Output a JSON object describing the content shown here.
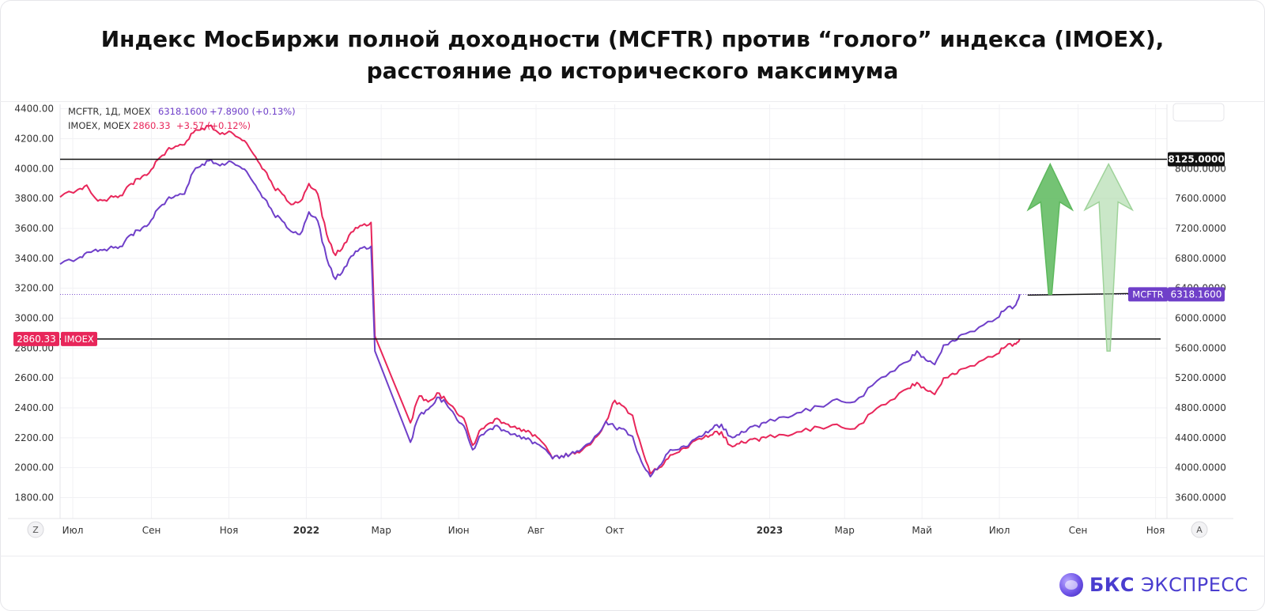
{
  "title": {
    "line1": "Индекс МосБиржи полной доходности (MCFTR) против “голого” индекса (IMOEX),",
    "line2": "расстояние до исторического максимума"
  },
  "legend": {
    "mcftr": {
      "label": "MCFTR, 1Д, MOEX",
      "value": "6318.1600",
      "change": "+7.8900 (+0.13%)"
    },
    "imoex": {
      "label": "IMOEX, MOEX",
      "value": "2860.33",
      "change": "+3.57 (+0.12%)"
    }
  },
  "brand": {
    "name_bold": "БКС",
    "name_rest": "ЭКСПРЕСС"
  },
  "buttons": {
    "left": "Z",
    "right": "A"
  },
  "colors": {
    "mcftr": "#6f3fc9",
    "imoex": "#e8265a",
    "arrow_dark": "#5cb85c",
    "arrow_light": "#9fd39a"
  },
  "chart_data": {
    "type": "line",
    "x_start": "2021-06-21",
    "x_end": "2023-11-10",
    "x_ticks": [
      {
        "date": "2021-07-01",
        "label": "Июл",
        "bold": false
      },
      {
        "date": "2021-09-01",
        "label": "Сен",
        "bold": false
      },
      {
        "date": "2021-11-01",
        "label": "Ноя",
        "bold": false
      },
      {
        "date": "2022-01-01",
        "label": "2022",
        "bold": true
      },
      {
        "date": "2022-03-01",
        "label": "Мар",
        "bold": false
      },
      {
        "date": "2022-05-01",
        "label": "Июн",
        "bold": false
      },
      {
        "date": "2022-07-01",
        "label": "Авг",
        "bold": false
      },
      {
        "date": "2022-09-01",
        "label": "Окт",
        "bold": false
      },
      {
        "date": "2023-01-01",
        "label": "2023",
        "bold": true
      },
      {
        "date": "2023-03-01",
        "label": "Мар",
        "bold": false
      },
      {
        "date": "2023-05-01",
        "label": "Май",
        "bold": false
      },
      {
        "date": "2023-07-01",
        "label": "Июл",
        "bold": false
      },
      {
        "date": "2023-09-01",
        "label": "Сен",
        "bold": false
      },
      {
        "date": "2023-11-01",
        "label": "Ноя",
        "bold": false
      }
    ],
    "left_axis": {
      "series": "IMOEX",
      "range": [
        1660,
        4430
      ],
      "ticks": [
        "4400.00",
        "4200.00",
        "4000.00",
        "3800.00",
        "3600.00",
        "3400.00",
        "3200.00",
        "3000.00",
        "2800.00",
        "2600.00",
        "2400.00",
        "2200.00",
        "2000.00",
        "1800.00"
      ]
    },
    "right_axis": {
      "series": "MCFTR",
      "range": [
        3320,
        8860
      ],
      "ticks": [
        "8000.0000",
        "7600.0000",
        "7200.0000",
        "6800.0000",
        "6400.0000",
        "6000.0000",
        "5600.0000",
        "5200.0000",
        "4800.0000",
        "4400.0000",
        "4000.0000",
        "3600.0000"
      ]
    },
    "series": [
      {
        "name": "MCFTR",
        "axis": "right",
        "points": [
          [
            "2021-06-21",
            6722
          ],
          [
            "2021-07-05",
            6800
          ],
          [
            "2021-07-12",
            6880
          ],
          [
            "2021-07-19",
            6920
          ],
          [
            "2021-07-26",
            6920
          ],
          [
            "2021-08-02",
            6940
          ],
          [
            "2021-08-09",
            6960
          ],
          [
            "2021-08-16",
            7120
          ],
          [
            "2021-08-23",
            7168
          ],
          [
            "2021-08-30",
            7260
          ],
          [
            "2021-09-06",
            7460
          ],
          [
            "2021-09-13",
            7580
          ],
          [
            "2021-09-20",
            7640
          ],
          [
            "2021-09-27",
            7660
          ],
          [
            "2021-10-04",
            7960
          ],
          [
            "2021-10-11",
            8060
          ],
          [
            "2021-10-18",
            8120
          ],
          [
            "2021-10-25",
            8040
          ],
          [
            "2021-11-01",
            8100
          ],
          [
            "2021-11-08",
            8040
          ],
          [
            "2021-11-15",
            7960
          ],
          [
            "2021-11-22",
            7780
          ],
          [
            "2021-11-29",
            7600
          ],
          [
            "2021-12-06",
            7400
          ],
          [
            "2021-12-13",
            7300
          ],
          [
            "2021-12-20",
            7160
          ],
          [
            "2021-12-27",
            7120
          ],
          [
            "2022-01-03",
            7420
          ],
          [
            "2022-01-10",
            7300
          ],
          [
            "2022-01-17",
            6800
          ],
          [
            "2022-01-24",
            6520
          ],
          [
            "2022-01-31",
            6680
          ],
          [
            "2022-02-07",
            6840
          ],
          [
            "2022-02-14",
            6940
          ],
          [
            "2022-02-21",
            6960
          ],
          [
            "2022-02-24",
            5560
          ],
          [
            "2022-03-24",
            4340
          ],
          [
            "2022-03-31",
            4700
          ],
          [
            "2022-04-07",
            4780
          ],
          [
            "2022-04-14",
            4940
          ],
          [
            "2022-04-21",
            4860
          ],
          [
            "2022-04-28",
            4700
          ],
          [
            "2022-05-05",
            4560
          ],
          [
            "2022-05-12",
            4240
          ],
          [
            "2022-05-19",
            4440
          ],
          [
            "2022-05-26",
            4520
          ],
          [
            "2022-06-02",
            4540
          ],
          [
            "2022-06-09",
            4480
          ],
          [
            "2022-06-16",
            4420
          ],
          [
            "2022-06-23",
            4380
          ],
          [
            "2022-06-30",
            4340
          ],
          [
            "2022-07-07",
            4260
          ],
          [
            "2022-07-14",
            4120
          ],
          [
            "2022-07-21",
            4160
          ],
          [
            "2022-07-28",
            4180
          ],
          [
            "2022-08-04",
            4220
          ],
          [
            "2022-08-11",
            4320
          ],
          [
            "2022-08-18",
            4440
          ],
          [
            "2022-08-25",
            4620
          ],
          [
            "2022-09-01",
            4540
          ],
          [
            "2022-09-08",
            4520
          ],
          [
            "2022-09-15",
            4420
          ],
          [
            "2022-09-22",
            4080
          ],
          [
            "2022-09-29",
            3880
          ],
          [
            "2022-10-06",
            4020
          ],
          [
            "2022-10-13",
            4200
          ],
          [
            "2022-10-20",
            4240
          ],
          [
            "2022-10-27",
            4280
          ],
          [
            "2022-11-03",
            4380
          ],
          [
            "2022-11-10",
            4440
          ],
          [
            "2022-11-17",
            4520
          ],
          [
            "2022-11-24",
            4580
          ],
          [
            "2022-12-01",
            4420
          ],
          [
            "2022-12-08",
            4440
          ],
          [
            "2022-12-15",
            4520
          ],
          [
            "2022-12-22",
            4560
          ],
          [
            "2022-12-29",
            4600
          ],
          [
            "2023-01-12",
            4680
          ],
          [
            "2023-01-26",
            4740
          ],
          [
            "2023-02-09",
            4820
          ],
          [
            "2023-02-23",
            4920
          ],
          [
            "2023-03-09",
            4880
          ],
          [
            "2023-03-23",
            5100
          ],
          [
            "2023-04-06",
            5280
          ],
          [
            "2023-04-20",
            5420
          ],
          [
            "2023-04-27",
            5560
          ],
          [
            "2023-05-04",
            5440
          ],
          [
            "2023-05-11",
            5380
          ],
          [
            "2023-05-18",
            5640
          ],
          [
            "2023-05-25",
            5700
          ],
          [
            "2023-06-01",
            5780
          ],
          [
            "2023-06-15",
            5880
          ],
          [
            "2023-06-29",
            6000
          ],
          [
            "2023-07-06",
            6120
          ],
          [
            "2023-07-13",
            6160
          ],
          [
            "2023-07-17",
            6320
          ]
        ]
      },
      {
        "name": "IMOEX",
        "axis": "left",
        "points": [
          [
            "2021-06-21",
            3810
          ],
          [
            "2021-07-05",
            3860
          ],
          [
            "2021-07-12",
            3890
          ],
          [
            "2021-07-19",
            3800
          ],
          [
            "2021-07-26",
            3790
          ],
          [
            "2021-08-02",
            3810
          ],
          [
            "2021-08-09",
            3820
          ],
          [
            "2021-08-16",
            3900
          ],
          [
            "2021-08-23",
            3930
          ],
          [
            "2021-08-30",
            3970
          ],
          [
            "2021-09-06",
            4060
          ],
          [
            "2021-09-13",
            4120
          ],
          [
            "2021-09-20",
            4150
          ],
          [
            "2021-09-27",
            4160
          ],
          [
            "2021-10-04",
            4240
          ],
          [
            "2021-10-11",
            4270
          ],
          [
            "2021-10-18",
            4290
          ],
          [
            "2021-10-25",
            4230
          ],
          [
            "2021-11-01",
            4250
          ],
          [
            "2021-11-08",
            4210
          ],
          [
            "2021-11-15",
            4170
          ],
          [
            "2021-11-22",
            4080
          ],
          [
            "2021-11-29",
            3990
          ],
          [
            "2021-12-06",
            3880
          ],
          [
            "2021-12-13",
            3830
          ],
          [
            "2021-12-20",
            3760
          ],
          [
            "2021-12-27",
            3780
          ],
          [
            "2022-01-03",
            3900
          ],
          [
            "2022-01-10",
            3830
          ],
          [
            "2022-01-17",
            3560
          ],
          [
            "2022-01-24",
            3420
          ],
          [
            "2022-01-31",
            3500
          ],
          [
            "2022-02-07",
            3580
          ],
          [
            "2022-02-14",
            3620
          ],
          [
            "2022-02-21",
            3640
          ],
          [
            "2022-02-24",
            2880
          ],
          [
            "2022-03-24",
            2300
          ],
          [
            "2022-03-31",
            2480
          ],
          [
            "2022-04-07",
            2440
          ],
          [
            "2022-04-14",
            2500
          ],
          [
            "2022-04-21",
            2450
          ],
          [
            "2022-04-28",
            2390
          ],
          [
            "2022-05-05",
            2330
          ],
          [
            "2022-05-12",
            2150
          ],
          [
            "2022-05-19",
            2260
          ],
          [
            "2022-05-26",
            2300
          ],
          [
            "2022-06-02",
            2320
          ],
          [
            "2022-06-09",
            2290
          ],
          [
            "2022-06-16",
            2260
          ],
          [
            "2022-06-23",
            2240
          ],
          [
            "2022-06-30",
            2220
          ],
          [
            "2022-07-07",
            2160
          ],
          [
            "2022-07-14",
            2060
          ],
          [
            "2022-07-21",
            2080
          ],
          [
            "2022-07-28",
            2090
          ],
          [
            "2022-08-04",
            2100
          ],
          [
            "2022-08-11",
            2150
          ],
          [
            "2022-08-18",
            2210
          ],
          [
            "2022-08-25",
            2310
          ],
          [
            "2022-09-01",
            2450
          ],
          [
            "2022-09-08",
            2410
          ],
          [
            "2022-09-15",
            2350
          ],
          [
            "2022-09-22",
            2140
          ],
          [
            "2022-09-29",
            1960
          ],
          [
            "2022-10-06",
            2000
          ],
          [
            "2022-10-13",
            2060
          ],
          [
            "2022-10-20",
            2100
          ],
          [
            "2022-10-27",
            2130
          ],
          [
            "2022-11-03",
            2180
          ],
          [
            "2022-11-10",
            2200
          ],
          [
            "2022-11-17",
            2220
          ],
          [
            "2022-11-24",
            2240
          ],
          [
            "2022-12-01",
            2150
          ],
          [
            "2022-12-08",
            2160
          ],
          [
            "2022-12-15",
            2180
          ],
          [
            "2022-12-22",
            2190
          ],
          [
            "2022-12-29",
            2200
          ],
          [
            "2023-01-12",
            2220
          ],
          [
            "2023-01-26",
            2240
          ],
          [
            "2023-02-09",
            2270
          ],
          [
            "2023-02-23",
            2290
          ],
          [
            "2023-03-09",
            2260
          ],
          [
            "2023-03-23",
            2370
          ],
          [
            "2023-04-06",
            2450
          ],
          [
            "2023-04-20",
            2530
          ],
          [
            "2023-04-27",
            2570
          ],
          [
            "2023-05-04",
            2520
          ],
          [
            "2023-05-11",
            2490
          ],
          [
            "2023-05-18",
            2600
          ],
          [
            "2023-05-25",
            2630
          ],
          [
            "2023-06-01",
            2660
          ],
          [
            "2023-06-15",
            2710
          ],
          [
            "2023-06-29",
            2760
          ],
          [
            "2023-07-06",
            2810
          ],
          [
            "2023-07-13",
            2830
          ],
          [
            "2023-07-17",
            2860
          ]
        ]
      }
    ],
    "levels": [
      {
        "name": "historical-max",
        "axis": "right",
        "value": 8125,
        "label": "8125.0000"
      },
      {
        "name": "mcftr-last",
        "axis": "right",
        "value": 6318.16,
        "label": "6318.1600",
        "tag": "MCFTR"
      },
      {
        "name": "imoex-last",
        "axis": "left",
        "value": 2860.33,
        "label": "2860.33",
        "tag": "IMOEX"
      }
    ],
    "arrows": [
      {
        "name": "mcftr-distance-arrow",
        "date": "2023-08-10",
        "from": 6318.16,
        "to": 8125,
        "axis": "right",
        "color": "dark"
      },
      {
        "name": "imoex-distance-arrow",
        "date": "2023-09-25",
        "from": 5560,
        "to": 8125,
        "axis": "right",
        "color": "light"
      }
    ]
  }
}
